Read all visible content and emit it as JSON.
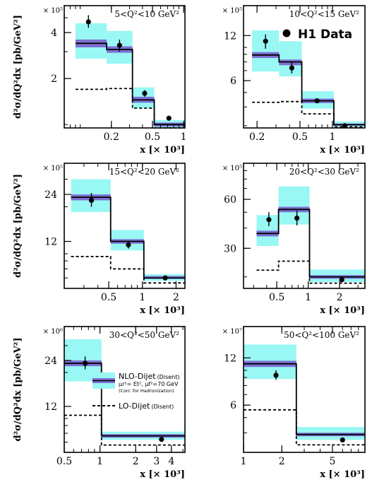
{
  "figure": {
    "legend": {
      "h1": "H1 Data",
      "nlo": "NLO-Dijet",
      "nlo_note": "(Disent)",
      "scale": "μr²= Et², μf²=70 GeV",
      "hadr": "(Corr. for Hadronization)",
      "lo": "LO-Dijet",
      "lo_note": "(Disent)"
    },
    "colors": {
      "band": "#99f7f4",
      "nlo_band": "#7d70d2",
      "line": "#000000",
      "data": "#000000"
    }
  },
  "chart_data": [
    {
      "type": "line",
      "panel": "1",
      "title": "5<Q²<10 GeV²",
      "xlabel": "x [× 10³]",
      "ylabel": "d²σ/dQ²dx [pb/GeV²]",
      "exponent": "× 10⁵",
      "xscale": "log",
      "yscale": "log",
      "xlim": [
        0.07,
        1.03
      ],
      "ylim": [
        0.95,
        6.0
      ],
      "xticks": [
        0.2,
        0.5,
        1
      ],
      "xticklabels": [
        "0.2",
        "0.5",
        "1"
      ],
      "yticks": [
        2,
        4
      ],
      "yticklabels": [
        "2",
        "4"
      ],
      "bin_edges": [
        0.09,
        0.18,
        0.32,
        0.52,
        1.03
      ],
      "nlo": [
        3.4,
        3.1,
        1.45,
        1.0
      ],
      "nlo_band_lo": [
        3.2,
        2.95,
        1.39,
        0.97
      ],
      "nlo_band_hi": [
        3.6,
        3.25,
        1.52,
        1.03
      ],
      "nlo_err_lo": [
        2.7,
        2.5,
        1.28,
        0.95
      ],
      "nlo_err_hi": [
        4.6,
        4.1,
        1.75,
        1.07
      ],
      "lo": [
        1.7,
        1.72,
        1.28,
        0.95
      ],
      "data_x": [
        0.12,
        0.24,
        0.42,
        0.72
      ],
      "data_y": [
        4.7,
        3.3,
        1.6,
        1.1
      ],
      "data_err_lo": [
        4.3,
        3.0,
        1.52,
        1.08
      ],
      "data_err_hi": [
        5.2,
        3.6,
        1.68,
        1.12
      ]
    },
    {
      "type": "line",
      "panel": "2",
      "title": "10<Q²<15 GeV²",
      "xlabel": "x [× 10³]",
      "ylabel": "",
      "exponent": "× 10⁵",
      "xscale": "log",
      "yscale": "log",
      "xlim": [
        0.15,
        2.0
      ],
      "ylim": [
        2.9,
        19.0
      ],
      "xticks": [
        0.2,
        0.5,
        1
      ],
      "xticklabels": [
        "0.2",
        "0.5",
        "1"
      ],
      "yticks": [
        6,
        12
      ],
      "yticklabels": [
        "6",
        "12"
      ],
      "bin_edges": [
        0.18,
        0.32,
        0.52,
        1.03,
        2.0
      ],
      "nlo": [
        8.9,
        8.0,
        4.4,
        3.05
      ],
      "nlo_band_lo": [
        8.5,
        7.6,
        4.25,
        3.0
      ],
      "nlo_band_hi": [
        9.3,
        8.3,
        4.55,
        3.1
      ],
      "nlo_err_lo": [
        6.9,
        6.4,
        3.9,
        2.95
      ],
      "nlo_err_hi": [
        13.0,
        11.0,
        5.1,
        3.2
      ],
      "lo": [
        4.3,
        4.35,
        3.6,
        2.95
      ],
      "data_x": [
        0.24,
        0.42,
        0.72,
        1.3
      ],
      "data_y": [
        11.0,
        7.3,
        4.4,
        3.0
      ],
      "data_err_lo": [
        9.8,
        6.7,
        4.3,
        2.96
      ],
      "data_err_hi": [
        12.2,
        8.0,
        4.5,
        3.04
      ]
    },
    {
      "type": "line",
      "panel": "3",
      "title": "15<Q²<20 GeV²",
      "xlabel": "x [× 10³]",
      "ylabel": "d²σ/dQ²dx [pb/GeV²]",
      "exponent": "× 10⁵",
      "xscale": "log",
      "yscale": "log",
      "xlim": [
        0.2,
        2.4
      ],
      "ylim": [
        6.0,
        38.0
      ],
      "xticks": [
        0.5,
        1,
        2
      ],
      "xticklabels": [
        "0.5",
        "1",
        "2"
      ],
      "yticks": [
        12,
        24
      ],
      "yticklabels": [
        "12",
        "24"
      ],
      "bin_edges": [
        0.23,
        0.52,
        1.03,
        2.4
      ],
      "nlo": [
        23.0,
        12.0,
        7.0
      ],
      "nlo_band_lo": [
        22.0,
        11.6,
        6.9
      ],
      "nlo_band_hi": [
        24.0,
        12.4,
        7.2
      ],
      "nlo_err_lo": [
        18.5,
        10.5,
        6.7
      ],
      "nlo_err_hi": [
        30.0,
        14.2,
        7.4
      ],
      "lo": [
        9.6,
        8.0,
        6.5
      ],
      "data_x": [
        0.35,
        0.75,
        1.6
      ],
      "data_y": [
        22.0,
        11.4,
        7.0
      ],
      "data_err_lo": [
        20.0,
        10.8,
        6.85
      ],
      "data_err_hi": [
        24.5,
        12.0,
        7.15
      ]
    },
    {
      "type": "line",
      "panel": "4",
      "title": "20<Q²<30 GeV²",
      "xlabel": "x [× 10³]",
      "ylabel": "",
      "exponent": "× 10⁵",
      "xscale": "log",
      "yscale": "log",
      "xlim": [
        0.24,
        3.5
      ],
      "ylim": [
        17.0,
        100.0
      ],
      "xticks": [
        0.5,
        1,
        2
      ],
      "xticklabels": [
        "0.5",
        "1",
        "2"
      ],
      "yticks": [
        30,
        60
      ],
      "yticklabels": [
        "30",
        "60"
      ],
      "bin_edges": [
        0.32,
        0.52,
        1.03,
        3.5
      ],
      "nlo": [
        37.0,
        52.0,
        20.0
      ],
      "nlo_band_lo": [
        35.5,
        50.0,
        19.5
      ],
      "nlo_band_hi": [
        38.5,
        54.0,
        20.5
      ],
      "nlo_err_lo": [
        31.0,
        42.0,
        18.6
      ],
      "nlo_err_hi": [
        48.0,
        72.0,
        22.2
      ],
      "lo": [
        22.0,
        25.0,
        18.3
      ],
      "data_x": [
        0.42,
        0.78,
        2.1
      ],
      "data_y": [
        45.0,
        46.0,
        19.2
      ],
      "data_err_lo": [
        41.0,
        41.5,
        18.9
      ],
      "data_err_hi": [
        50.0,
        51.0,
        19.5
      ]
    },
    {
      "type": "line",
      "panel": "5",
      "title": "30<Q²<50 GeV²",
      "xlabel": "x [× 10³]",
      "ylabel": "d²σ/dQ²dx [pb/GeV²]",
      "exponent": "× 10⁶",
      "xscale": "log",
      "yscale": "log",
      "xlim": [
        0.5,
        5.2
      ],
      "ylim": [
        6.0,
        40.0
      ],
      "xticks": [
        0.5,
        1,
        2,
        3,
        4
      ],
      "xticklabels": [
        "0.5",
        "1",
        "2",
        "3",
        "4"
      ],
      "yticks": [
        12,
        24
      ],
      "yticklabels": [
        "12",
        "24"
      ],
      "bin_edges": [
        0.5,
        1.03,
        5.2
      ],
      "nlo": [
        23.0,
        7.7
      ],
      "nlo_band_lo": [
        22.0,
        7.5
      ],
      "nlo_band_hi": [
        24.0,
        7.9
      ],
      "nlo_err_lo": [
        17.5,
        7.25
      ],
      "nlo_err_hi": [
        33.0,
        8.2
      ],
      "lo": [
        10.5,
        6.7
      ],
      "data_x": [
        0.75,
        3.3
      ],
      "data_y": [
        23.0,
        7.3
      ],
      "data_err_lo": [
        21.0,
        7.2
      ],
      "data_err_hi": [
        25.5,
        7.4
      ]
    },
    {
      "type": "line",
      "panel": "6",
      "title": "50<Q²<100 GeV²",
      "xlabel": "x [× 10³]",
      "ylabel": "",
      "exponent": "× 10⁷",
      "xscale": "log",
      "yscale": "log",
      "xlim": [
        1.0,
        9.0
      ],
      "ylim": [
        3.0,
        19.0
      ],
      "xticks": [
        1,
        2,
        5
      ],
      "xticklabels": [
        "1",
        "2",
        "5"
      ],
      "yticks": [
        6,
        12
      ],
      "yticklabels": [
        "6",
        "12"
      ],
      "bin_edges": [
        1.0,
        2.6,
        9.0
      ],
      "nlo": [
        11.0,
        3.9
      ],
      "nlo_band_lo": [
        10.5,
        3.8
      ],
      "nlo_band_hi": [
        11.5,
        4.0
      ],
      "nlo_err_lo": [
        8.8,
        3.6
      ],
      "nlo_err_hi": [
        14.6,
        4.35
      ],
      "lo": [
        5.6,
        3.35
      ],
      "data_x": [
        1.8,
        6.0
      ],
      "data_y": [
        9.3,
        3.6
      ],
      "data_err_lo": [
        8.7,
        3.55
      ],
      "data_err_hi": [
        10.0,
        3.65
      ]
    }
  ]
}
